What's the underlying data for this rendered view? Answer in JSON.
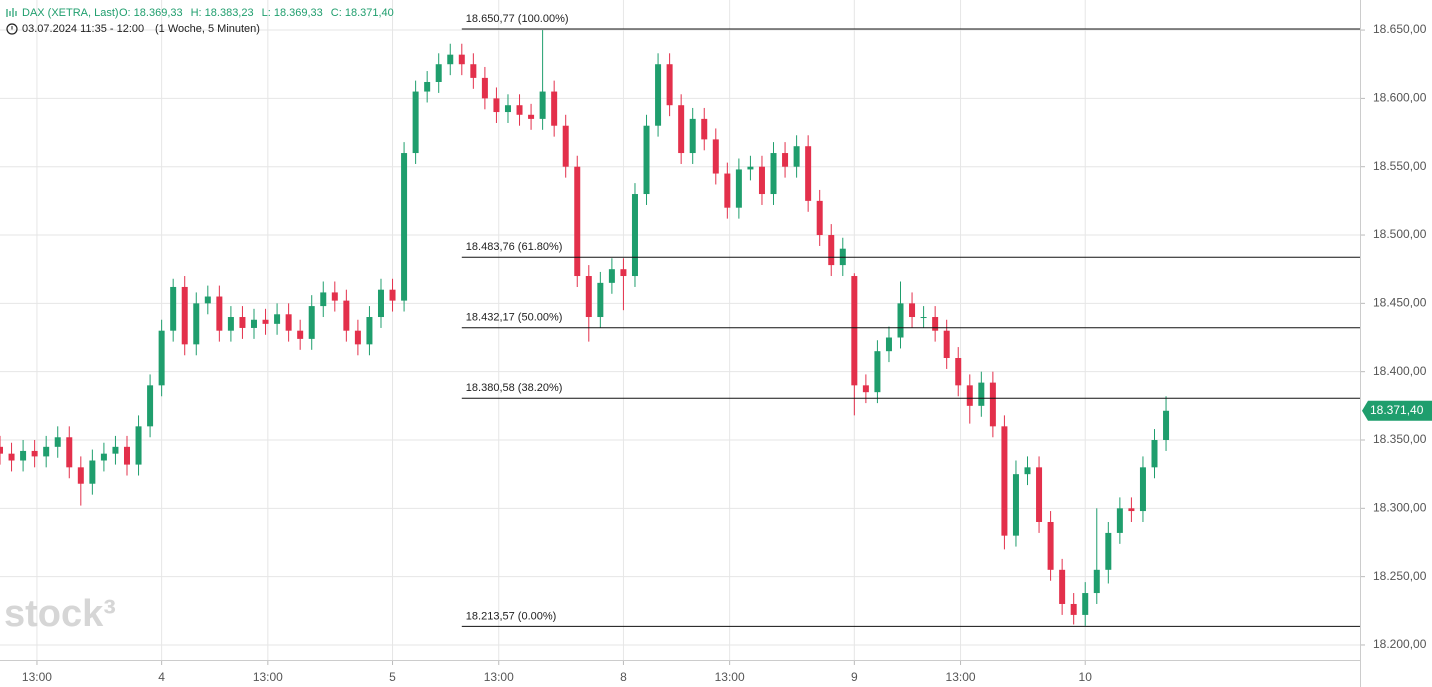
{
  "chart_data": {
    "type": "candlestick",
    "symbol": "DAX (XETRA, Last)",
    "ohlc_header": [
      "O: 18.369,33",
      "H: 18.383,23",
      "L: 18.369,33",
      "C: 18.371,40"
    ],
    "period": "03.07.2024 11:35 - 12:00",
    "interval": "(1 Woche, 5 Minuten)",
    "watermark": "stock³",
    "x": [
      0.3,
      0.35,
      0.4,
      0.45,
      0.5,
      0.55,
      0.6,
      0.65,
      0.7,
      0.75,
      0.8,
      0.85,
      0.9,
      0.95,
      1.0,
      1.05,
      1.1,
      1.15,
      1.2,
      1.25,
      1.3,
      1.35,
      1.4,
      1.45,
      1.5,
      1.55,
      1.6,
      1.65,
      1.7,
      1.75,
      1.8,
      1.85,
      1.9,
      1.95,
      2.0,
      2.05,
      2.1,
      2.15,
      2.2,
      2.25,
      2.3,
      2.35,
      2.4,
      2.45,
      2.5,
      2.55,
      2.6,
      2.65,
      2.7,
      2.75,
      2.8,
      2.85,
      2.9,
      2.95,
      3.0,
      3.05,
      3.1,
      3.15,
      3.2,
      3.25,
      3.3,
      3.35,
      3.4,
      3.45,
      3.5,
      3.55,
      3.6,
      3.65,
      3.7,
      3.75,
      3.8,
      3.85,
      3.9,
      3.95,
      4.0,
      4.05,
      4.1,
      4.15,
      4.2,
      4.25,
      4.3,
      4.35,
      4.4,
      4.45,
      4.5,
      4.55,
      4.6,
      4.65,
      4.7,
      4.75,
      4.8,
      4.85,
      4.9,
      4.95,
      5.0,
      5.05,
      5.1,
      5.15,
      5.2,
      5.25,
      5.3,
      5.35
    ],
    "open": [
      18345,
      18340,
      18335,
      18342,
      18338,
      18345,
      18352,
      18330,
      18318,
      18335,
      18340,
      18345,
      18332,
      18360,
      18390,
      18430,
      18462,
      18420,
      18450,
      18455,
      18430,
      18440,
      18432,
      18438,
      18435,
      18442,
      18430,
      18424,
      18448,
      18458,
      18452,
      18430,
      18420,
      18440,
      18460,
      18452,
      18560,
      18605,
      18612,
      18625,
      18632,
      18625,
      18615,
      18600,
      18590,
      18595,
      18588,
      18585,
      18605,
      18580,
      18550,
      18470,
      18440,
      18465,
      18475,
      18470,
      18530,
      18580,
      18625,
      18595,
      18560,
      18585,
      18570,
      18545,
      18520,
      18548,
      18550,
      18530,
      18560,
      18550,
      18565,
      18525,
      18500,
      18478,
      18470,
      18390,
      18385,
      18415,
      18425,
      18450,
      18440,
      18440,
      18430,
      18410,
      18390,
      18375,
      18392,
      18360,
      18280,
      18325,
      18330,
      18290,
      18255,
      18230,
      18222,
      18238,
      18255,
      18282,
      18300,
      18298,
      18330,
      18350
    ],
    "high": [
      18353,
      18348,
      18350,
      18350,
      18353,
      18360,
      18360,
      18338,
      18343,
      18348,
      18353,
      18353,
      18368,
      18398,
      18438,
      18468,
      18470,
      18458,
      18463,
      18463,
      18448,
      18448,
      18446,
      18446,
      18450,
      18450,
      18438,
      18456,
      18466,
      18466,
      18460,
      18438,
      18448,
      18468,
      18468,
      18568,
      18613,
      18620,
      18633,
      18640,
      18640,
      18633,
      18623,
      18608,
      18603,
      18603,
      18596,
      18650,
      18613,
      18588,
      18558,
      18478,
      18473,
      18483,
      18483,
      18538,
      18588,
      18633,
      18633,
      18603,
      18593,
      18593,
      18578,
      18553,
      18556,
      18558,
      18558,
      18568,
      18568,
      18573,
      18573,
      18533,
      18508,
      18498,
      18472,
      18398,
      18423,
      18433,
      18466,
      18458,
      18448,
      18448,
      18438,
      18418,
      18398,
      18400,
      18400,
      18368,
      18335,
      18338,
      18338,
      18298,
      18263,
      18238,
      18246,
      18300,
      18290,
      18308,
      18308,
      18338,
      18358,
      18382
    ],
    "low": [
      18332,
      18327,
      18327,
      18330,
      18330,
      18337,
      18322,
      18302,
      18310,
      18327,
      18332,
      18324,
      18324,
      18352,
      18382,
      18422,
      18412,
      18412,
      18442,
      18422,
      18422,
      18424,
      18424,
      18427,
      18427,
      18422,
      18416,
      18416,
      18440,
      18444,
      18422,
      18412,
      18412,
      18432,
      18444,
      18444,
      18552,
      18597,
      18604,
      18617,
      18617,
      18607,
      18592,
      18582,
      18582,
      18580,
      18577,
      18577,
      18572,
      18542,
      18462,
      18422,
      18432,
      18457,
      18445,
      18462,
      18522,
      18572,
      18587,
      18552,
      18552,
      18562,
      18537,
      18512,
      18512,
      18540,
      18522,
      18522,
      18542,
      18542,
      18517,
      18492,
      18470,
      18470,
      18368,
      18377,
      18377,
      18407,
      18417,
      18432,
      18432,
      18422,
      18402,
      18382,
      18362,
      18367,
      18352,
      18270,
      18272,
      18317,
      18282,
      18247,
      18222,
      18215,
      18214,
      18230,
      18245,
      18274,
      18290,
      18290,
      18322,
      18342
    ],
    "close": [
      18340,
      18335,
      18342,
      18338,
      18345,
      18352,
      18330,
      18318,
      18335,
      18340,
      18345,
      18332,
      18360,
      18390,
      18430,
      18462,
      18420,
      18450,
      18455,
      18430,
      18440,
      18432,
      18438,
      18435,
      18442,
      18430,
      18424,
      18448,
      18458,
      18452,
      18430,
      18420,
      18440,
      18460,
      18452,
      18560,
      18605,
      18612,
      18625,
      18632,
      18625,
      18615,
      18600,
      18590,
      18595,
      18588,
      18585,
      18605,
      18580,
      18550,
      18470,
      18440,
      18465,
      18475,
      18470,
      18530,
      18580,
      18625,
      18595,
      18560,
      18585,
      18570,
      18545,
      18520,
      18548,
      18550,
      18530,
      18560,
      18550,
      18565,
      18525,
      18500,
      18478,
      18490,
      18390,
      18385,
      18415,
      18425,
      18450,
      18440,
      18440,
      18430,
      18410,
      18390,
      18375,
      18392,
      18360,
      18280,
      18325,
      18330,
      18290,
      18255,
      18230,
      18222,
      18238,
      18255,
      18282,
      18300,
      18298,
      18330,
      18350,
      18371.4
    ],
    "up_color": "#1f9e6d",
    "down_color": "#e3304b",
    "last_price": {
      "value": 18371.4,
      "label": "18.371,40"
    },
    "fib_levels": [
      {
        "value": 18650.77,
        "label": "18.650,77 (100.00%)"
      },
      {
        "value": 18483.76,
        "label": "18.483,76 (61.80%)"
      },
      {
        "value": 18432.17,
        "label": "18.432,17 (50.00%)"
      },
      {
        "value": 18380.58,
        "label": "18.380,58 (38.20%)"
      },
      {
        "value": 18213.57,
        "label": "18.213,57 (0.00%)"
      }
    ],
    "fib_start": 2.3,
    "xlim": [
      0.3,
      6.19
    ],
    "ylim": [
      18189,
      18672
    ],
    "xticks": [
      {
        "value": 0.46,
        "label": "13:00"
      },
      {
        "value": 1,
        "label": "4"
      },
      {
        "value": 1.46,
        "label": "13:00"
      },
      {
        "value": 2,
        "label": "5"
      },
      {
        "value": 2.46,
        "label": "13:00"
      },
      {
        "value": 3,
        "label": "8"
      },
      {
        "value": 3.46,
        "label": "13:00"
      },
      {
        "value": 4,
        "label": "9"
      },
      {
        "value": 4.46,
        "label": "13:00"
      },
      {
        "value": 5,
        "label": "10"
      }
    ],
    "yticks": [
      {
        "value": 18200,
        "label": "18.200,00"
      },
      {
        "value": 18250,
        "label": "18.250,00"
      },
      {
        "value": 18300,
        "label": "18.300,00"
      },
      {
        "value": 18350,
        "label": "18.350,00"
      },
      {
        "value": 18400,
        "label": "18.400,00"
      },
      {
        "value": 18450,
        "label": "18.450,00"
      },
      {
        "value": 18500,
        "label": "18.500,00"
      },
      {
        "value": 18550,
        "label": "18.550,00"
      },
      {
        "value": 18600,
        "label": "18.600,00"
      },
      {
        "value": 18650,
        "label": "18.650,00"
      }
    ],
    "grid": true
  }
}
